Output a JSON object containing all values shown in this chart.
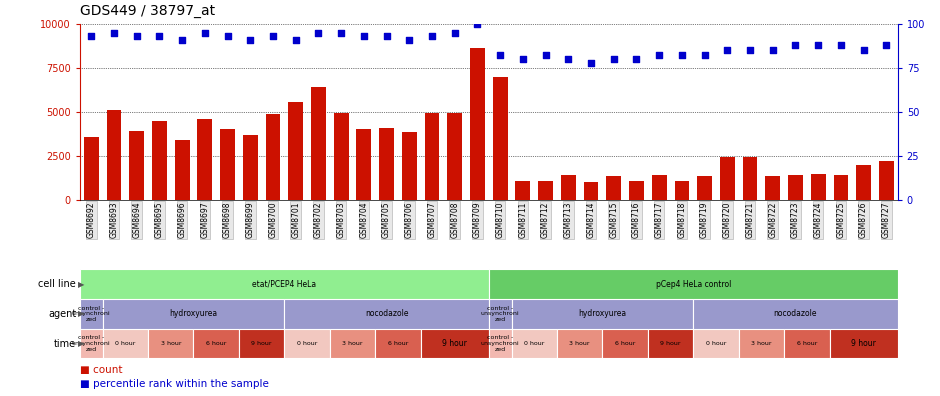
{
  "title": "GDS449 / 38797_at",
  "samples": [
    "GSM8692",
    "GSM8693",
    "GSM8694",
    "GSM8695",
    "GSM8696",
    "GSM8697",
    "GSM8698",
    "GSM8699",
    "GSM8700",
    "GSM8701",
    "GSM8702",
    "GSM8703",
    "GSM8704",
    "GSM8705",
    "GSM8706",
    "GSM8707",
    "GSM8708",
    "GSM8709",
    "GSM8710",
    "GSM8711",
    "GSM8712",
    "GSM8713",
    "GSM8714",
    "GSM8715",
    "GSM8716",
    "GSM8717",
    "GSM8718",
    "GSM8719",
    "GSM8720",
    "GSM8721",
    "GSM8722",
    "GSM8723",
    "GSM8724",
    "GSM8725",
    "GSM8726",
    "GSM8727"
  ],
  "bar_values": [
    3600,
    5100,
    3900,
    4500,
    3400,
    4600,
    4050,
    3700,
    4900,
    5550,
    6400,
    4950,
    4050,
    4100,
    3850,
    4950,
    4950,
    8600,
    7000,
    1050,
    1100,
    1400,
    1000,
    1350,
    1100,
    1400,
    1050,
    1350,
    2450,
    2450,
    1350,
    1400,
    1500,
    1400,
    2000,
    2200
  ],
  "percentile_values": [
    93,
    95,
    93,
    93,
    91,
    95,
    93,
    91,
    93,
    91,
    95,
    95,
    93,
    93,
    91,
    93,
    95,
    100,
    82,
    80,
    82,
    80,
    78,
    80,
    80,
    82,
    82,
    82,
    85,
    85,
    85,
    88,
    88,
    88,
    85,
    88
  ],
  "bar_color": "#cc1100",
  "dot_color": "#0000cc",
  "ylim_left": [
    0,
    10000
  ],
  "ylim_right": [
    0,
    100
  ],
  "yticks_left": [
    0,
    2500,
    5000,
    7500,
    10000
  ],
  "yticks_right": [
    0,
    25,
    50,
    75,
    100
  ],
  "background_color": "#ffffff",
  "cell_line_row": [
    {
      "label": "etat/PCEP4 HeLa",
      "start": 0,
      "end": 18,
      "color": "#90ee90"
    },
    {
      "label": "pCep4 HeLa control",
      "start": 18,
      "end": 36,
      "color": "#66cc66"
    }
  ],
  "agent_row": [
    {
      "label": "control -\nunsynchroni\nzed",
      "start": 0,
      "end": 1,
      "color": "#9999cc"
    },
    {
      "label": "hydroxyurea",
      "start": 1,
      "end": 9,
      "color": "#9999cc"
    },
    {
      "label": "nocodazole",
      "start": 9,
      "end": 18,
      "color": "#9999cc"
    },
    {
      "label": "control -\nunsynchroni\nzed",
      "start": 18,
      "end": 19,
      "color": "#9999cc"
    },
    {
      "label": "hydroxyurea",
      "start": 19,
      "end": 27,
      "color": "#9999cc"
    },
    {
      "label": "nocodazole",
      "start": 27,
      "end": 36,
      "color": "#9999cc"
    }
  ],
  "time_row": [
    {
      "label": "control -\nunsynchroni\nzed",
      "start": 0,
      "end": 1,
      "color": "#f2b8b0"
    },
    {
      "label": "0 hour",
      "start": 1,
      "end": 3,
      "color": "#f2c8c0"
    },
    {
      "label": "3 hour",
      "start": 3,
      "end": 5,
      "color": "#e89080"
    },
    {
      "label": "6 hour",
      "start": 5,
      "end": 7,
      "color": "#d96050"
    },
    {
      "label": "9 hour",
      "start": 7,
      "end": 9,
      "color": "#c03020"
    },
    {
      "label": "0 hour",
      "start": 9,
      "end": 11,
      "color": "#f2c8c0"
    },
    {
      "label": "3 hour",
      "start": 11,
      "end": 13,
      "color": "#e89080"
    },
    {
      "label": "6 hour",
      "start": 13,
      "end": 15,
      "color": "#d96050"
    },
    {
      "label": "9 hour",
      "start": 15,
      "end": 18,
      "color": "#c03020"
    },
    {
      "label": "control -\nunsynchroni\nzed",
      "start": 18,
      "end": 19,
      "color": "#f2b8b0"
    },
    {
      "label": "0 hour",
      "start": 19,
      "end": 21,
      "color": "#f2c8c0"
    },
    {
      "label": "3 hour",
      "start": 21,
      "end": 23,
      "color": "#e89080"
    },
    {
      "label": "6 hour",
      "start": 23,
      "end": 25,
      "color": "#d96050"
    },
    {
      "label": "9 hour",
      "start": 25,
      "end": 27,
      "color": "#c03020"
    },
    {
      "label": "0 hour",
      "start": 27,
      "end": 29,
      "color": "#f2c8c0"
    },
    {
      "label": "3 hour",
      "start": 29,
      "end": 31,
      "color": "#e89080"
    },
    {
      "label": "6 hour",
      "start": 31,
      "end": 33,
      "color": "#d96050"
    },
    {
      "label": "9 hour",
      "start": 33,
      "end": 36,
      "color": "#c03020"
    }
  ],
  "row_labels": [
    "cell line",
    "agent",
    "time"
  ],
  "legend_count_color": "#cc1100",
  "legend_pct_color": "#0000cc"
}
